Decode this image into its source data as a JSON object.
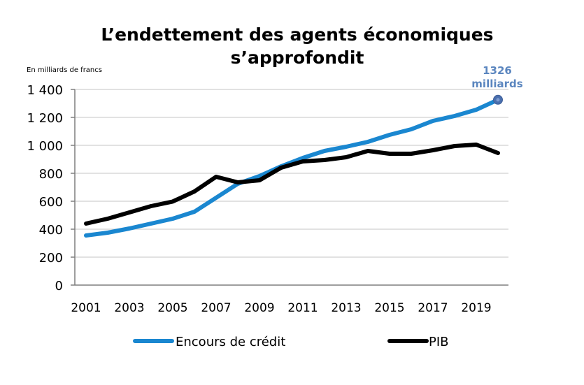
{
  "chart_data": {
    "type": "line",
    "title": [
      "L’endettement des agents économiques",
      "s’approfondit"
    ],
    "unit_label": "En milliards de francs",
    "xlabel": "",
    "ylabel": "En milliards de francs",
    "x": [
      2001,
      2002,
      2003,
      2004,
      2005,
      2006,
      2007,
      2008,
      2009,
      2010,
      2011,
      2012,
      2013,
      2014,
      2015,
      2016,
      2017,
      2018,
      2019,
      2020
    ],
    "x_tick_labels": [
      "2001",
      "2003",
      "2005",
      "2007",
      "2009",
      "2011",
      "2013",
      "2015",
      "2017",
      "2019"
    ],
    "ylim": [
      0,
      1400
    ],
    "y_ticks": [
      0,
      200,
      400,
      600,
      800,
      1000,
      1200,
      1400
    ],
    "y_tick_labels": [
      "0",
      "200",
      "400",
      "600",
      "800",
      "1 000",
      "1 200",
      "1 400"
    ],
    "grid": true,
    "legend_position": "bottom",
    "series": [
      {
        "name": "Encours de crédit",
        "color": "#1a87d0",
        "values": [
          355,
          375,
          405,
          440,
          475,
          525,
          625,
          725,
          780,
          850,
          910,
          960,
          990,
          1025,
          1075,
          1115,
          1175,
          1210,
          1255,
          1326
        ]
      },
      {
        "name": "PIB",
        "color": "#000000",
        "values": [
          440,
          475,
          520,
          565,
          598,
          670,
          775,
          735,
          750,
          840,
          885,
          895,
          915,
          960,
          940,
          940,
          965,
          995,
          1005,
          945
        ]
      }
    ],
    "annotation": {
      "series": "Encours de crédit",
      "x": 2020,
      "value": 1326,
      "lines": [
        "1326",
        "milliards"
      ],
      "color": "#5b86bf",
      "marker_color": "#4a6fae"
    }
  }
}
